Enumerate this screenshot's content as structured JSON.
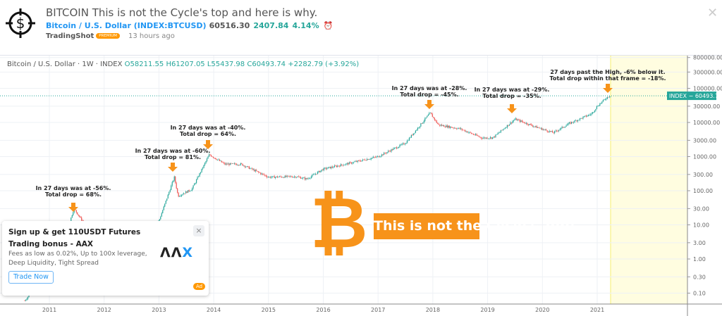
{
  "header": {
    "title": "BITCOIN This is not the Cycle's top and here is why.",
    "symbol_name": "Bitcoin / U.S. Dollar",
    "symbol_code": "(INDEX:BTCUSD)",
    "price": "60516.30",
    "change": "2407.84",
    "change_pct": "4.14%",
    "author": "TradingShot",
    "badge": "PREMIUM",
    "time": "13 hours ago",
    "logo_icon": "crosshair-dollar-icon",
    "alert_icon": "alarm-clock-icon",
    "close_icon": "close-icon"
  },
  "legend": {
    "name": "Bitcoin / U.S. Dollar · 1W · INDEX",
    "open": "O58211.55",
    "high": "H61207.05",
    "low": "L55437.98",
    "close": "C60493.74",
    "change": "+2282.79 (+3.92%)"
  },
  "chart_data": {
    "type": "candlestick",
    "scale": "log",
    "y_ticks": [
      "800000.00",
      "300000.00",
      "100000.00",
      "30000.00",
      "10000.00",
      "3000.00",
      "1000.00",
      "300.00",
      "100.00",
      "30.00",
      "10.00",
      "3.00",
      "1.00",
      "0.30",
      "0.10"
    ],
    "x_ticks": [
      "2011",
      "2012",
      "2013",
      "2014",
      "2015",
      "2016",
      "2017",
      "2018",
      "2019",
      "2020",
      "2021"
    ],
    "last_label": "INDEX − 60493.74",
    "colors": {
      "up": "#26a69a",
      "down": "#ef5350",
      "highlight": "#fffde0",
      "arrow": "#f7931a"
    },
    "key_points": [
      [
        2010.55,
        0.06
      ],
      [
        2010.9,
        0.3
      ],
      [
        2011.05,
        0.3
      ],
      [
        2011.45,
        30
      ],
      [
        2011.9,
        2.5
      ],
      [
        2012.5,
        6
      ],
      [
        2013.0,
        13
      ],
      [
        2013.28,
        250
      ],
      [
        2013.35,
        70
      ],
      [
        2013.6,
        110
      ],
      [
        2013.92,
        1150
      ],
      [
        2014.2,
        600
      ],
      [
        2014.5,
        600
      ],
      [
        2015.0,
        250
      ],
      [
        2015.5,
        260
      ],
      [
        2015.7,
        220
      ],
      [
        2016.0,
        430
      ],
      [
        2016.5,
        650
      ],
      [
        2017.0,
        1000
      ],
      [
        2017.5,
        2500
      ],
      [
        2017.95,
        19000
      ],
      [
        2018.1,
        8500
      ],
      [
        2018.5,
        6500
      ],
      [
        2018.9,
        3500
      ],
      [
        2019.1,
        3600
      ],
      [
        2019.5,
        12500
      ],
      [
        2019.9,
        7200
      ],
      [
        2020.2,
        5000
      ],
      [
        2020.5,
        9500
      ],
      [
        2020.9,
        18000
      ],
      [
        2021.0,
        30000
      ],
      [
        2021.2,
        58000
      ],
      [
        2021.25,
        60500
      ]
    ],
    "annotations": [
      {
        "line1": "In 27 days was at -56%.",
        "line2": "Total drop = 68%."
      },
      {
        "line1": "In 27 days was at -60%.",
        "line2": "Total drop = 81%."
      },
      {
        "line1": "In 27 days was at -40%.",
        "line2": "Total drop = 64%."
      },
      {
        "line1": "In 27 days was at -28%.",
        "line2": "Total drop = -45%."
      },
      {
        "line1": "In 27 days was at -29%.",
        "line2": "Total drop = -35%."
      },
      {
        "line1": "27 days past the High, -6% below it.",
        "line2": "Total drop within that frame = -18%."
      }
    ]
  },
  "overlay": {
    "banner": "This is not the Cycle's Top!",
    "bitcoin_symbol": "₿"
  },
  "ad": {
    "title": "Sign up & get 110USDT Futures Trading bonus - AAX",
    "desc": "Fees as low as 0.02%, Up to 100x leverage, Deep Liquidity, Tight Spread",
    "button": "Trade Now",
    "logo_a": "ΛΛ",
    "logo_b": "X",
    "badge": "Ad",
    "close": "×"
  }
}
